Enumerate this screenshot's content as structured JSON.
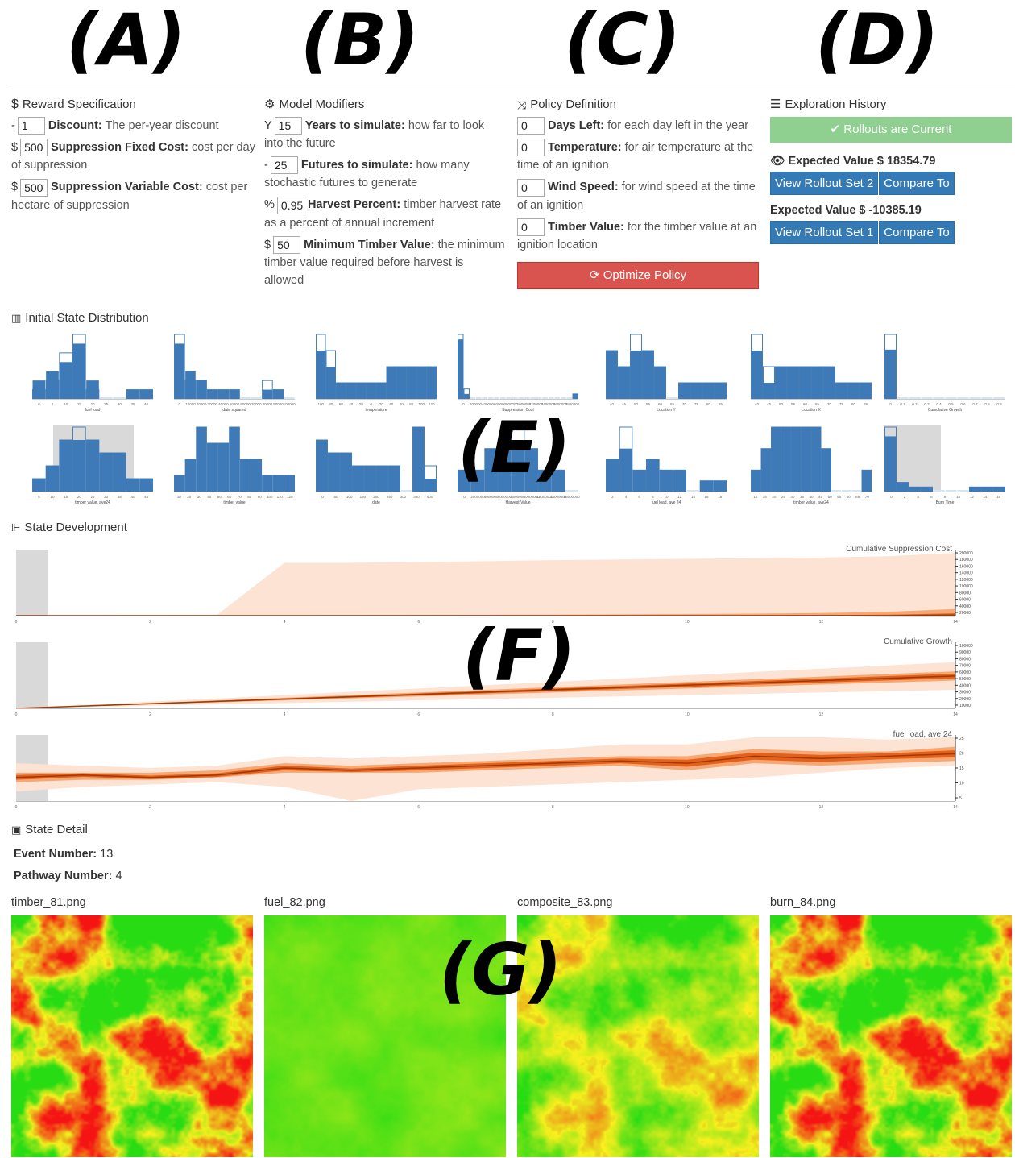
{
  "labels": {
    "a": "(A)",
    "b": "(B)",
    "c": "(C)",
    "d": "(D)",
    "e": "(E)",
    "f": "(F)",
    "g": "(G)"
  },
  "reward": {
    "title": "Reward Specification",
    "discount": {
      "unit": "-",
      "value": "1",
      "label": "Discount:",
      "desc": "The per-year discount"
    },
    "fixed": {
      "unit": "$",
      "value": "500",
      "label": "Suppression Fixed Cost:",
      "desc": "cost per day of suppression"
    },
    "variable": {
      "unit": "$",
      "value": "500",
      "label": "Suppression Variable Cost:",
      "desc": "cost per hectare of suppression"
    }
  },
  "model": {
    "title": "Model Modifiers",
    "years": {
      "unit": "Y",
      "value": "15",
      "label": "Years to simulate:",
      "desc": "how far to look into the future"
    },
    "futures": {
      "unit": "-",
      "value": "25",
      "label": "Futures to simulate:",
      "desc": "how many stochastic futures to generate"
    },
    "harvest": {
      "unit": "%",
      "value": "0.95",
      "label": "Harvest Percent:",
      "desc": "timber harvest rate as a percent of annual increment"
    },
    "minimum": {
      "unit": "$",
      "value": "50",
      "label": "Minimum Timber Value:",
      "desc": "the minimum timber value required before harvest is allowed"
    }
  },
  "policy": {
    "title": "Policy Definition",
    "days": {
      "value": "0",
      "label": "Days Left:",
      "desc": "for each day left in the year"
    },
    "temp": {
      "value": "0",
      "label": "Temperature:",
      "desc": "for air temperature at the time of an ignition"
    },
    "wind": {
      "value": "0",
      "label": "Wind Speed:",
      "desc": "for wind speed at the time of an ignition"
    },
    "timber": {
      "value": "0",
      "label": "Timber Value:",
      "desc": "for the timber value at an ignition location"
    },
    "optimize": "Optimize Policy"
  },
  "history": {
    "title": "Exploration History",
    "current": "Rollouts are Current",
    "ev1": "Expected Value $ 18354.79",
    "ev2": "Expected Value $ -10385.19",
    "view2": "View Rollout Set 2",
    "view1": "View Rollout Set 1",
    "compare": "Compare To"
  },
  "initial_state": {
    "title": "Initial State Distribution",
    "histograms": [
      {
        "label": "fuel load",
        "ticks": [
          "0",
          "5",
          "10",
          "15",
          "20",
          "25",
          "30",
          "35",
          "40"
        ],
        "values": [
          2,
          3,
          4,
          6,
          2,
          0,
          0,
          1,
          1
        ],
        "outline": [
          1,
          2,
          5,
          7,
          1,
          0,
          0,
          1,
          1
        ]
      },
      {
        "label": "date squared",
        "ticks": [
          "0",
          "10000",
          "20000",
          "30000",
          "40000",
          "50000",
          "60000",
          "70000",
          "80000",
          "90000",
          "100000"
        ],
        "values": [
          6,
          3,
          2,
          1,
          1,
          1,
          0,
          0,
          1,
          1,
          0
        ],
        "outline": [
          7,
          2,
          2,
          1,
          1,
          1,
          0,
          0,
          2,
          1,
          0
        ]
      },
      {
        "label": "temperature",
        "ticks": [
          "100",
          "80",
          "60",
          "40",
          "20",
          "0",
          "20",
          "40",
          "60",
          "80",
          "100",
          "120"
        ],
        "values": [
          3,
          2,
          1,
          1,
          1,
          1,
          1,
          2,
          2,
          2,
          2,
          2
        ],
        "outline": [
          4,
          3,
          1,
          1,
          1,
          1,
          1,
          2,
          2,
          2,
          2,
          2
        ]
      },
      {
        "label": "Suppression Cost",
        "ticks": [
          "0",
          "200000",
          "400000",
          "600000",
          "800000",
          "1000000",
          "1200000",
          "1400000",
          "1600000",
          "1800000"
        ],
        "values": [
          12,
          1,
          0,
          0,
          0,
          0,
          0,
          0,
          0,
          0,
          0,
          0,
          0,
          0,
          0,
          0,
          0,
          0,
          0,
          1
        ],
        "outline": [
          13,
          2,
          0,
          0,
          0,
          0,
          0,
          0,
          0,
          0,
          0,
          0,
          0,
          0,
          0,
          0,
          0,
          0,
          0,
          1
        ]
      },
      {
        "label": "Location Y",
        "ticks": [
          "40",
          "45",
          "50",
          "55",
          "60",
          "65",
          "70",
          "75",
          "80",
          "85"
        ],
        "values": [
          3,
          2,
          3,
          3,
          2,
          0,
          1,
          1,
          1,
          1
        ],
        "outline": [
          3,
          2,
          4,
          3,
          2,
          0,
          1,
          1,
          1,
          1
        ]
      },
      {
        "label": "Location X",
        "ticks": [
          "40",
          "45",
          "50",
          "55",
          "60",
          "65",
          "70",
          "75",
          "80",
          "85"
        ],
        "values": [
          3,
          1,
          2,
          2,
          2,
          2,
          2,
          1,
          1,
          1
        ],
        "outline": [
          4,
          2,
          2,
          2,
          2,
          2,
          2,
          1,
          1,
          1
        ]
      },
      {
        "label": "Cumulative Growth",
        "ticks": [
          "0",
          "0.1",
          "0.2",
          "0.3",
          "0.4",
          "0.5",
          "0.6",
          "0.7",
          "0.8",
          "0.9"
        ],
        "values": [
          13,
          0,
          0,
          0,
          0,
          0,
          0,
          0,
          0,
          0
        ],
        "outline": [
          17,
          0,
          0,
          0,
          0,
          0,
          0,
          0,
          0,
          0
        ]
      },
      {
        "label": "timber value, ave24",
        "ticks": [
          "5",
          "10",
          "15",
          "20",
          "25",
          "30",
          "35",
          "40",
          "45"
        ],
        "values": [
          1,
          2,
          4,
          4,
          4,
          3,
          3,
          1,
          1
        ],
        "outline": [
          1,
          2,
          4,
          5,
          4,
          3,
          3,
          1,
          1
        ],
        "highlight": true
      },
      {
        "label": "timber value",
        "ticks": [
          "10",
          "20",
          "30",
          "40",
          "50",
          "60",
          "70",
          "80",
          "90",
          "100",
          "110",
          "120"
        ],
        "values": [
          1,
          2,
          4,
          3,
          3,
          4,
          2,
          2,
          1,
          1,
          1
        ],
        "outline": [
          1,
          2,
          4,
          3,
          3,
          4,
          2,
          2,
          1,
          1,
          1
        ]
      },
      {
        "label": "date",
        "ticks": [
          "0",
          "50",
          "100",
          "150",
          "200",
          "250",
          "300",
          "350",
          "400"
        ],
        "values": [
          4,
          3,
          3,
          2,
          2,
          2,
          2,
          0,
          5,
          1
        ],
        "outline": [
          4,
          3,
          3,
          2,
          2,
          2,
          2,
          0,
          5,
          2
        ]
      },
      {
        "label": "Harvest Value",
        "ticks": [
          "0",
          "2000000",
          "4000000",
          "6000000",
          "8000000",
          "10000000",
          "12000000",
          "14000000",
          "16000000"
        ],
        "values": [
          1,
          1,
          2,
          2,
          2,
          2,
          1,
          1,
          0
        ],
        "outline": [
          1,
          1,
          2,
          2,
          3,
          2,
          1,
          1,
          0
        ]
      },
      {
        "label": "fuel load, ave 24",
        "ticks": [
          "2",
          "4",
          "6",
          "8",
          "10",
          "12",
          "14",
          "16",
          "18"
        ],
        "values": [
          3,
          4,
          2,
          3,
          2,
          2,
          0,
          1,
          1
        ],
        "outline": [
          3,
          6,
          2,
          3,
          2,
          2,
          0,
          1,
          1
        ]
      },
      {
        "label": "timber value, ave24",
        "ticks": [
          "10",
          "15",
          "20",
          "25",
          "30",
          "35",
          "40",
          "45",
          "50",
          "55",
          "60",
          "65",
          "70"
        ],
        "values": [
          1,
          2,
          3,
          3,
          3,
          3,
          3,
          2,
          0,
          0,
          0,
          1
        ],
        "outline": [
          1,
          2,
          3,
          3,
          3,
          3,
          3,
          2,
          0,
          0,
          0,
          1
        ]
      },
      {
        "label": "Burn Time",
        "ticks": [
          "0",
          "2",
          "4",
          "6",
          "8",
          "10",
          "12",
          "14",
          "16"
        ],
        "values": [
          12,
          2,
          1,
          1,
          0,
          0,
          0,
          1,
          1,
          1
        ],
        "outline": [
          14,
          2,
          1,
          1,
          0,
          0,
          0,
          1,
          1,
          1
        ],
        "highlight": true
      }
    ]
  },
  "state_development": {
    "title": "State Development",
    "x_ticks": [
      "0",
      "2",
      "4",
      "6",
      "8",
      "10",
      "12",
      "14"
    ],
    "charts": [
      {
        "name": "Cumulative Suppression Cost",
        "y_ticks": [
          "200000",
          "180000",
          "160000",
          "140000",
          "120000",
          "100000",
          "80000",
          "60000",
          "40000",
          "20000"
        ],
        "x": [
          0,
          1,
          2,
          3,
          4,
          5,
          6,
          7,
          8,
          9,
          10,
          11,
          12,
          13,
          14
        ],
        "q05": [
          0,
          0,
          0,
          0,
          0,
          0,
          0,
          0,
          0,
          0,
          0,
          0,
          0,
          0,
          0
        ],
        "q25": [
          0,
          0,
          0,
          0,
          0,
          0,
          0,
          0,
          0,
          0,
          0,
          0,
          0,
          0,
          0
        ],
        "median": [
          0,
          0,
          0,
          0,
          0,
          0,
          0,
          0,
          0,
          0,
          0,
          0,
          0,
          0,
          2000
        ],
        "q75": [
          0,
          0,
          0,
          500,
          1000,
          1500,
          2000,
          2500,
          3000,
          4000,
          5000,
          6000,
          8000,
          12000,
          20000
        ],
        "q95": [
          0,
          1000,
          2000,
          3000,
          160000,
          160000,
          162000,
          165000,
          168000,
          170000,
          172000,
          174000,
          176000,
          180000,
          190000
        ],
        "ylim": [
          0,
          200000
        ]
      },
      {
        "name": "Cumulative Growth",
        "y_ticks": [
          "100000",
          "90000",
          "80000",
          "70000",
          "60000",
          "50000",
          "40000",
          "30000",
          "20000",
          "10000"
        ],
        "x": [
          0,
          1,
          2,
          3,
          4,
          5,
          6,
          7,
          8,
          9,
          10,
          11,
          12,
          13,
          14
        ],
        "q05": [
          0,
          2000,
          4000,
          6000,
          8000,
          10000,
          12000,
          14000,
          16000,
          18000,
          20000,
          22000,
          24000,
          26000,
          28000
        ],
        "q25": [
          0,
          3000,
          6000,
          9000,
          12000,
          15000,
          18000,
          21000,
          24000,
          27000,
          30000,
          33000,
          36000,
          39000,
          42000
        ],
        "median": [
          0,
          3500,
          7000,
          10500,
          14000,
          17500,
          21000,
          24500,
          28000,
          31500,
          35000,
          38500,
          42000,
          45500,
          49000
        ],
        "q75": [
          0,
          4000,
          8000,
          12000,
          16000,
          20000,
          24000,
          28000,
          32000,
          36000,
          40000,
          44000,
          48000,
          52000,
          56000
        ],
        "q95": [
          0,
          5000,
          10000,
          15000,
          20000,
          25000,
          30000,
          35000,
          40000,
          45000,
          50000,
          55000,
          60000,
          65000,
          70000
        ],
        "ylim": [
          0,
          100000
        ]
      },
      {
        "name": "fuel load, ave 24",
        "y_ticks": [
          "25",
          "20",
          "15",
          "10",
          "5"
        ],
        "x": [
          0,
          1,
          2,
          3,
          4,
          5,
          6,
          7,
          8,
          9,
          10,
          11,
          12,
          13,
          14
        ],
        "q05": [
          4,
          6,
          7,
          8,
          6,
          0,
          5,
          6,
          7,
          8,
          9,
          10,
          12,
          14,
          15
        ],
        "q25": [
          8,
          9,
          9,
          10,
          12,
          12,
          12,
          13,
          14,
          15,
          13,
          16,
          15,
          16,
          17
        ],
        "median": [
          10,
          11,
          10,
          11,
          14,
          13,
          14,
          15,
          16,
          17,
          16,
          19,
          18,
          19,
          20
        ],
        "q75": [
          12,
          12,
          12,
          13,
          16,
          15,
          16,
          17,
          18,
          19,
          19,
          22,
          21,
          21,
          23
        ],
        "q95": [
          16,
          15,
          14,
          15,
          19,
          18,
          19,
          20,
          22,
          24,
          24,
          27,
          27,
          26,
          27
        ],
        "ylim": [
          0,
          28
        ]
      }
    ]
  },
  "state_detail": {
    "title": "State Detail",
    "event_label": "Event Number:",
    "event_value": "13",
    "pathway_label": "Pathway Number:",
    "pathway_value": "4",
    "images": [
      "timber_81.png",
      "fuel_82.png",
      "composite_83.png",
      "burn_84.png"
    ]
  },
  "colors": {
    "accent_blue": "#337ab7",
    "danger": "#d9534f",
    "success": "#8fcf8f",
    "orange": "#e5601a"
  }
}
